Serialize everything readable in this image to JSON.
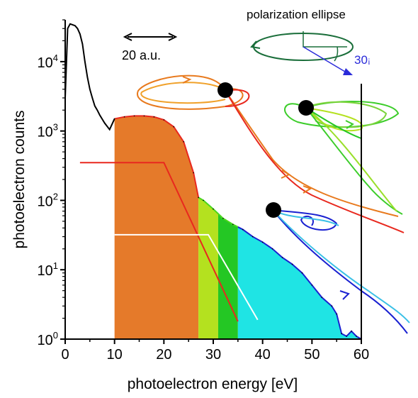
{
  "chart_data": {
    "type": "area",
    "xlabel": "photoelectron energy [eV]",
    "ylabel": "photoelectron counts",
    "y_scale": "log",
    "xlim": [
      0,
      60
    ],
    "ylim": [
      1,
      40000
    ],
    "x_ticks": [
      "0",
      "10",
      "20",
      "30",
      "40",
      "50",
      "60"
    ],
    "y_tick_values": [
      1,
      10,
      100,
      1000,
      10000
    ],
    "y_ticks": [
      {
        "base": "10",
        "exp": "0"
      },
      {
        "base": "10",
        "exp": "1"
      },
      {
        "base": "10",
        "exp": "2"
      },
      {
        "base": "10",
        "exp": "3"
      },
      {
        "base": "10",
        "exp": "4"
      }
    ],
    "spectrum": {
      "x": [
        0,
        0.5,
        1,
        1.5,
        2,
        2.5,
        3,
        3.5,
        4,
        4.5,
        5,
        5.5,
        6,
        6.5,
        7,
        8,
        9,
        10,
        12,
        14,
        16,
        18,
        20,
        22,
        24,
        26,
        27,
        28,
        30,
        32,
        34,
        36,
        38,
        40,
        42,
        44,
        46,
        48,
        50,
        52,
        54,
        55,
        56,
        57,
        58,
        59,
        60
      ],
      "y": [
        3000,
        30000,
        35000,
        34000,
        33000,
        30000,
        25000,
        18000,
        10000,
        6000,
        4000,
        3000,
        2300,
        2000,
        1700,
        1300,
        1050,
        1500,
        1600,
        1650,
        1650,
        1600,
        1450,
        1150,
        700,
        250,
        110,
        100,
        75,
        55,
        45,
        38,
        30,
        25,
        20,
        15,
        12,
        9,
        6,
        4,
        3,
        2.3,
        1.2,
        1.1,
        1.3,
        1.1,
        1
      ]
    },
    "colored_regions": [
      {
        "from": 10,
        "to": 27,
        "color": "#e57a2a"
      },
      {
        "from": 27,
        "to": 31,
        "color": "#b4e11f"
      },
      {
        "from": 31,
        "to": 35,
        "color": "#24c724"
      },
      {
        "from": 35,
        "to": 60,
        "color": "#1fe4e4"
      }
    ],
    "spectrum_colors": {
      "low": "#000000",
      "orange": "#e8281e",
      "green": "#49d71c",
      "cyan": "#1a21d1"
    },
    "model_lines": [
      {
        "x": [
          3,
          20,
          35
        ],
        "y": [
          350,
          350,
          1.8
        ],
        "color": "#e8281e"
      },
      {
        "x": [
          10,
          29,
          39
        ],
        "y": [
          32,
          32,
          1.9
        ],
        "color": "#ffffff"
      }
    ],
    "annotations": {
      "scale_bar": "20 a.u.",
      "ellipse_label": "polarization ellipse",
      "angle_label": "30",
      "angle_unit": "¡"
    },
    "colors": {
      "axis": "#000000",
      "angle_text": "#2a2bd9",
      "ellipse": "#1a6e3a"
    }
  }
}
